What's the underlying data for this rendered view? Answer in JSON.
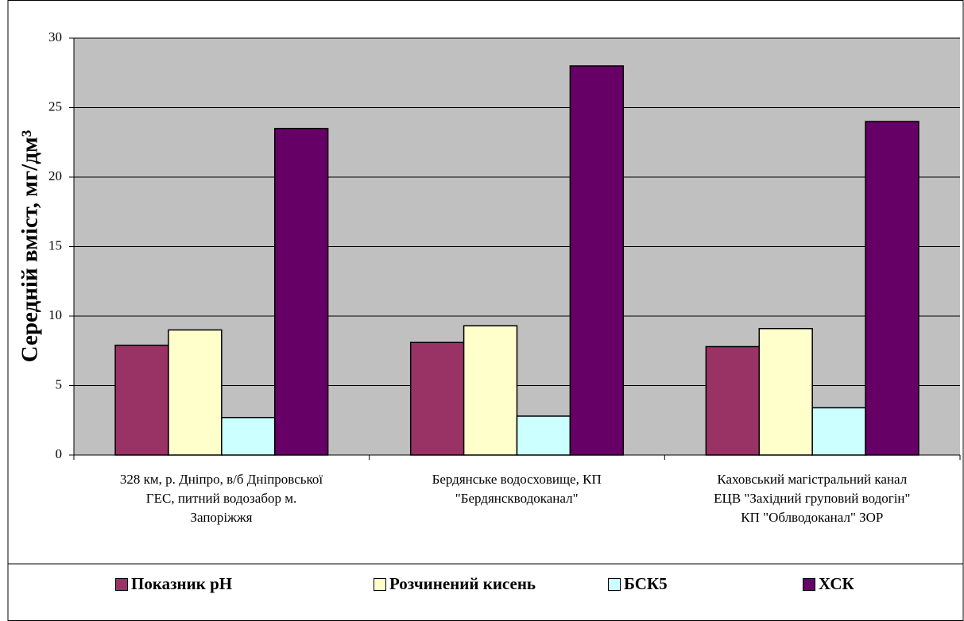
{
  "chart_data": {
    "type": "bar",
    "ylabel": "Середній вміст, мг/дм³",
    "categories": [
      "328 км, р. Дніпро, в/б Дніпровської\nГЕС, питний водозабор м.\nЗапоріжжя",
      "Бердянське водосховище, КП\n\"Бердянскводоканал\"",
      "Каховський магістральний канал\nЕЦВ  \"Західний груповий водогін\"\nКП \"Облводоканал\" ЗОР"
    ],
    "series": [
      {
        "name": "Показник рН",
        "color": "#993366",
        "values": [
          7.9,
          8.1,
          7.8
        ]
      },
      {
        "name": "Розчинений кисень",
        "color": "#ffffcc",
        "values": [
          9.0,
          9.3,
          9.1
        ]
      },
      {
        "name": "БСК5",
        "color": "#ccffff",
        "values": [
          2.7,
          2.8,
          3.4
        ]
      },
      {
        "name": "ХСК",
        "color": "#660066",
        "values": [
          23.5,
          28.0,
          24.0
        ]
      }
    ],
    "ylim": [
      0,
      30
    ],
    "yticks": [
      0,
      5,
      10,
      15,
      20,
      25,
      30
    ],
    "grid": true,
    "plot_background": "#c0c0c0"
  }
}
